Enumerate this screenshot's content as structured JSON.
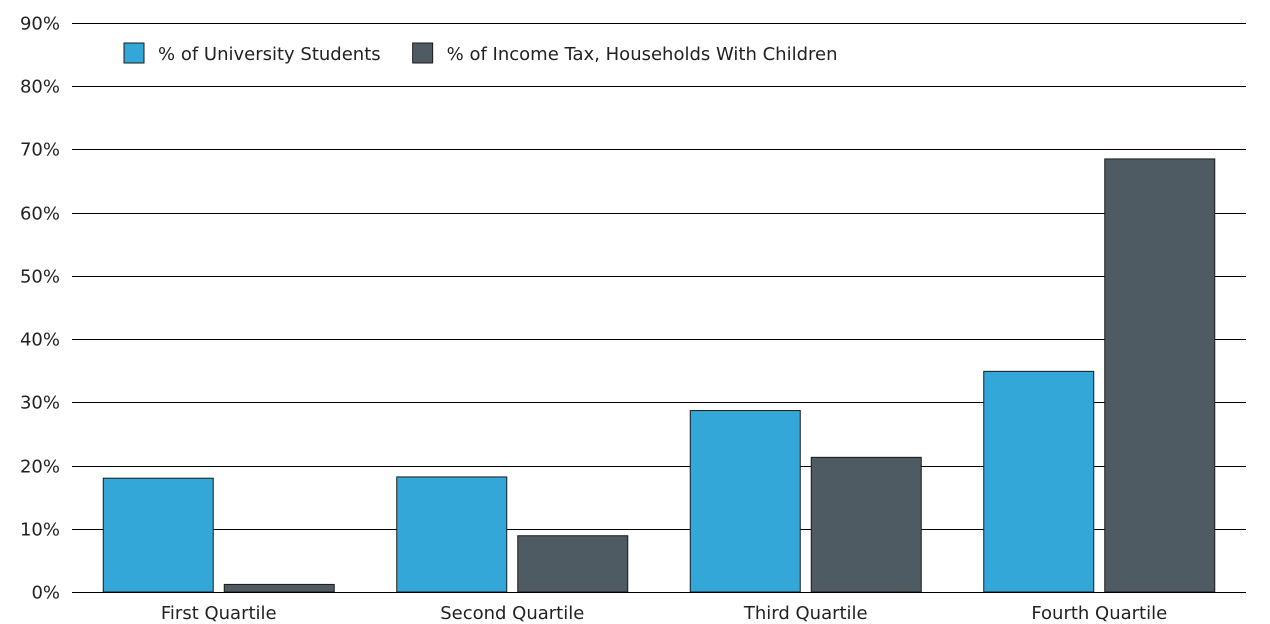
{
  "chart_data": {
    "type": "bar",
    "categories": [
      "First Quartile",
      "Second Quartile",
      "Third Quartile",
      "Fourth Quartile"
    ],
    "series": [
      {
        "name": "% of University Students",
        "color": "#33a8d8",
        "values": [
          18,
          18.2,
          28.7,
          34.9
        ]
      },
      {
        "name": "% of Income Tax, Households With Children",
        "color": "#4f5b63",
        "values": [
          1.2,
          8.9,
          21.3,
          68.5
        ]
      }
    ],
    "title": "",
    "xlabel": "",
    "ylabel": "",
    "ylim": [
      0,
      90
    ],
    "yticks": [
      0,
      10,
      20,
      30,
      40,
      50,
      60,
      70,
      80,
      90
    ],
    "ytick_labels": [
      "0%",
      "10%",
      "20%",
      "30%",
      "40%",
      "50%",
      "60%",
      "70%",
      "80%",
      "90%"
    ],
    "grid": true,
    "legend_position": "top-left"
  }
}
